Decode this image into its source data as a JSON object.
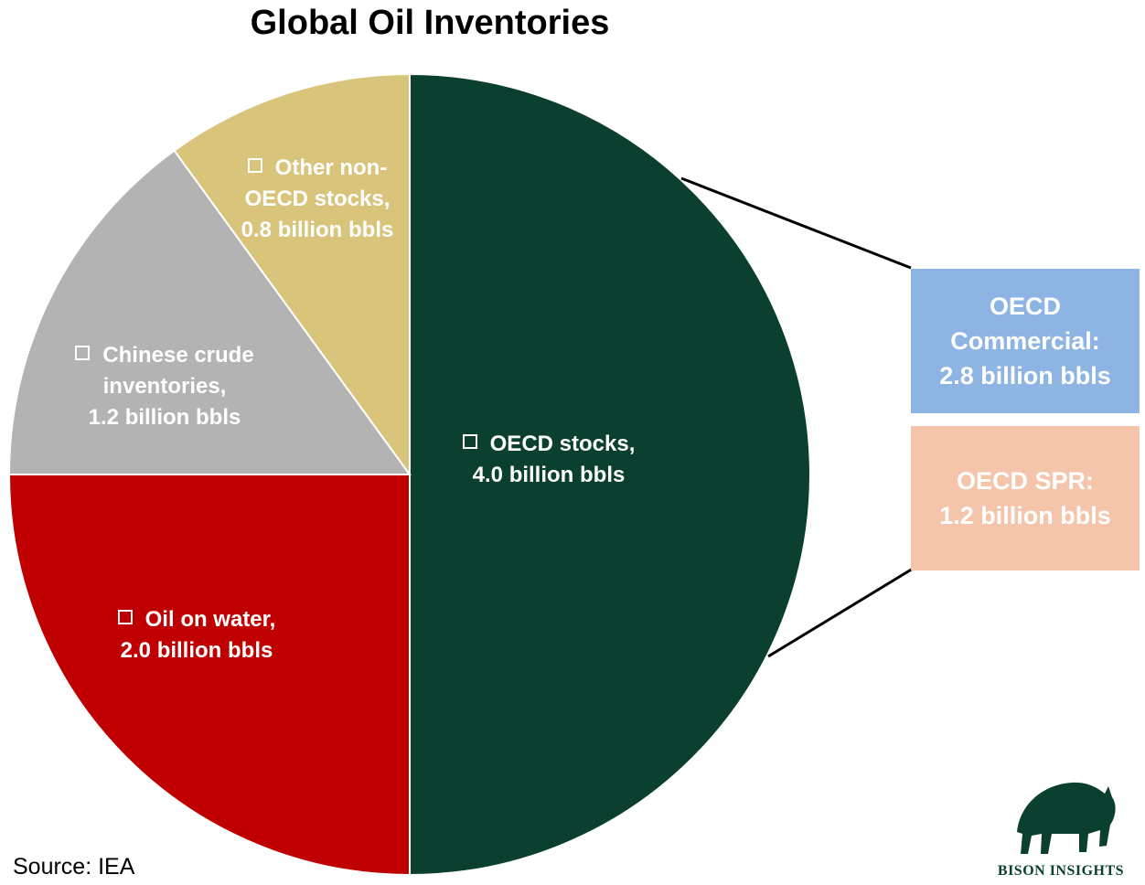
{
  "chart_data": {
    "type": "pie",
    "title": "Global Oil Inventories",
    "categories": [
      "OECD stocks,",
      "Oil on water,",
      "Chinese crude inventories,",
      "Other non-OECD stocks,"
    ],
    "values": [
      4.0,
      2.0,
      1.2,
      0.8
    ],
    "value_labels": [
      "4.0 billion bbls",
      "2.0 billion bbls",
      "1.2 billion bbls",
      "0.8 billion bbls"
    ],
    "colors": [
      "#0b4030",
      "#c00000",
      "#b3b3b3",
      "#d9c47c"
    ],
    "breakdown": {
      "categories": [
        "OECD Commercial:",
        "OECD SPR:"
      ],
      "values": [
        2.8,
        1.2
      ],
      "value_labels": [
        "2.8 billion bbls",
        "1.2 billion bbls"
      ],
      "colors": [
        "#8db4e2",
        "#f4c4ab"
      ]
    },
    "source": "Source: IEA",
    "logo_text": "BISON INSIGHTS"
  }
}
